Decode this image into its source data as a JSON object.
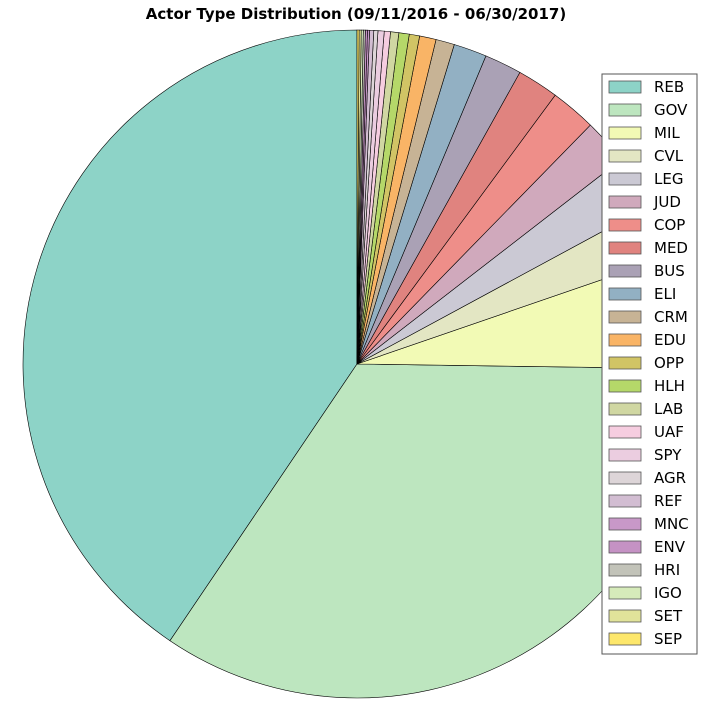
{
  "chart_data": {
    "type": "pie",
    "title": "Actor Type Distribution  (09/11/2016 - 06/30/2017)",
    "start_angle_deg": 90,
    "direction": "counterclockwise",
    "legend_position": "right",
    "slices": [
      {
        "label": "REB",
        "value": 40.5,
        "color": "#8dd3c7"
      },
      {
        "label": "GOV",
        "value": 34.2,
        "color": "#bde6bf"
      },
      {
        "label": "MIL",
        "value": 5.5,
        "color": "#f2fab5"
      },
      {
        "label": "CVL",
        "value": 2.6,
        "color": "#e3e6c3"
      },
      {
        "label": "LEG",
        "value": 2.6,
        "color": "#cbc9d4"
      },
      {
        "label": "JUD",
        "value": 2.2,
        "color": "#d0a9bc"
      },
      {
        "label": "COP",
        "value": 2.2,
        "color": "#ee8e89"
      },
      {
        "label": "MED",
        "value": 2.0,
        "color": "#e0837f"
      },
      {
        "label": "BUS",
        "value": 1.8,
        "color": "#aaa1b5"
      },
      {
        "label": "ELI",
        "value": 1.6,
        "color": "#92b0c3"
      },
      {
        "label": "CRM",
        "value": 0.9,
        "color": "#c7b395"
      },
      {
        "label": "EDU",
        "value": 0.8,
        "color": "#f9b466"
      },
      {
        "label": "OPP",
        "value": 0.5,
        "color": "#d1c465"
      },
      {
        "label": "HLH",
        "value": 0.5,
        "color": "#b5d869"
      },
      {
        "label": "LAB",
        "value": 0.4,
        "color": "#d0d7a2"
      },
      {
        "label": "UAF",
        "value": 0.3,
        "color": "#f6cde0"
      },
      {
        "label": "SPY",
        "value": 0.3,
        "color": "#ebcde0"
      },
      {
        "label": "AGR",
        "value": 0.2,
        "color": "#ddd5d8"
      },
      {
        "label": "REF",
        "value": 0.2,
        "color": "#d2bdd2"
      },
      {
        "label": "MNC",
        "value": 0.1,
        "color": "#c898c8"
      },
      {
        "label": "ENV",
        "value": 0.1,
        "color": "#c592c4"
      },
      {
        "label": "HRI",
        "value": 0.1,
        "color": "#c2c3b9"
      },
      {
        "label": "IGO",
        "value": 0.1,
        "color": "#d6ebba"
      },
      {
        "label": "SET",
        "value": 0.1,
        "color": "#e1e39a"
      },
      {
        "label": "SEP",
        "value": 0.1,
        "color": "#fde76b"
      }
    ]
  }
}
